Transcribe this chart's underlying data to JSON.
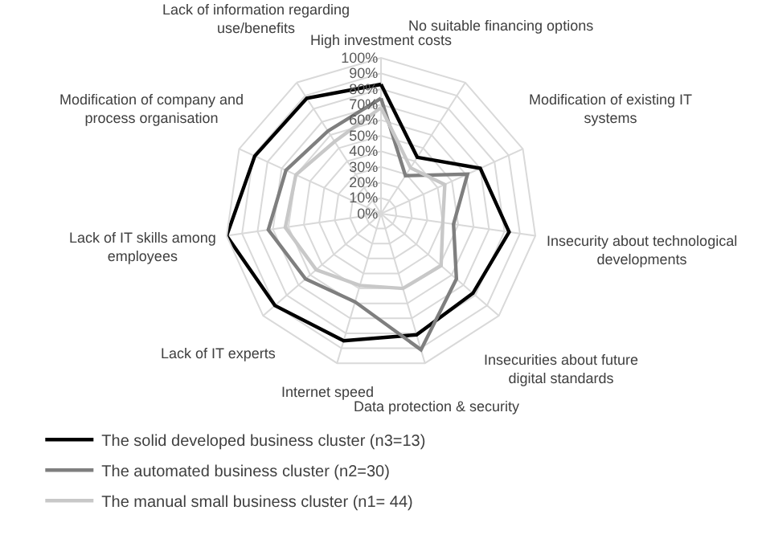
{
  "chart_data": {
    "type": "radar",
    "categories": [
      "High investment costs",
      "No suitable financing options",
      "Modification of existing IT systems",
      "Insecurity about technological developments",
      "Insecurities about future digital standards",
      "Data protection & security",
      "Internet speed",
      "Lack of IT experts",
      "Lack of IT skills among employees",
      "Modification of company and process organisation",
      "Lack of information regarding use/benefits"
    ],
    "series": [
      {
        "name": "The solid developed business cluster (n3=13)",
        "color": "#000000",
        "values": [
          83,
          43,
          70,
          83,
          78,
          81,
          85,
          90,
          100,
          89,
          88
        ]
      },
      {
        "name": "The automated business cluster (n2=30)",
        "color": "#7f7f7f",
        "values": [
          74,
          29,
          61,
          47,
          64,
          91,
          59,
          64,
          73,
          67,
          63
        ]
      },
      {
        "name": "The manual small business cluster (n1= 44)",
        "color": "#c8c8c8",
        "values": [
          68,
          35,
          45,
          40,
          51,
          50,
          48,
          55,
          62,
          60,
          55
        ]
      }
    ],
    "ylim": [
      0,
      100
    ],
    "yticks": [
      {
        "value": 0,
        "label": "0%"
      },
      {
        "value": 10,
        "label": "10%"
      },
      {
        "value": 20,
        "label": "20%"
      },
      {
        "value": 30,
        "label": "30%"
      },
      {
        "value": 40,
        "label": "40%"
      },
      {
        "value": 50,
        "label": "50%"
      },
      {
        "value": 60,
        "label": "60%"
      },
      {
        "value": 70,
        "label": "70%"
      },
      {
        "value": 80,
        "label": "80%"
      },
      {
        "value": 90,
        "label": "90%"
      },
      {
        "value": 100,
        "label": "100%"
      }
    ],
    "grid": true,
    "legend": "bottom",
    "marker": "none",
    "line_style": "solid"
  }
}
